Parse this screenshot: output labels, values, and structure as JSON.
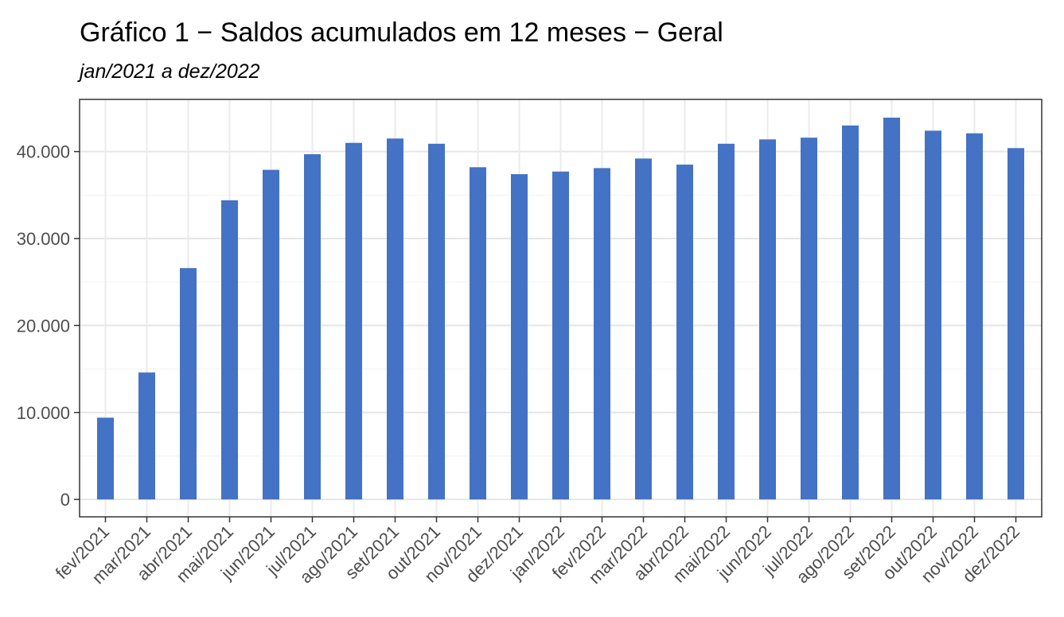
{
  "chart_data": {
    "type": "bar",
    "title": "Gráfico 1 − Saldos acumulados em 12 meses − Geral",
    "subtitle": "jan/2021 a dez/2022",
    "xlabel": "",
    "ylabel": "",
    "ylim": [
      -2000,
      46000
    ],
    "yticks": [
      0,
      10000,
      20000,
      30000,
      40000
    ],
    "ytick_labels": [
      "0",
      "10.000",
      "20.000",
      "30.000",
      "40.000"
    ],
    "grid": true,
    "bar_color": "#4472C4",
    "categories": [
      "fev/2021",
      "mar/2021",
      "abr/2021",
      "mai/2021",
      "jun/2021",
      "jul/2021",
      "ago/2021",
      "set/2021",
      "out/2021",
      "nov/2021",
      "dez/2021",
      "jan/2022",
      "fev/2022",
      "mar/2022",
      "abr/2022",
      "mai/2022",
      "jun/2022",
      "jul/2022",
      "ago/2022",
      "set/2022",
      "out/2022",
      "nov/2022",
      "dez/2022"
    ],
    "values": [
      9400,
      14600,
      26600,
      34400,
      37900,
      39700,
      41000,
      41500,
      40900,
      38200,
      37400,
      37700,
      38100,
      39200,
      38500,
      40900,
      41400,
      41600,
      43000,
      43900,
      42400,
      42100,
      40400
    ]
  }
}
